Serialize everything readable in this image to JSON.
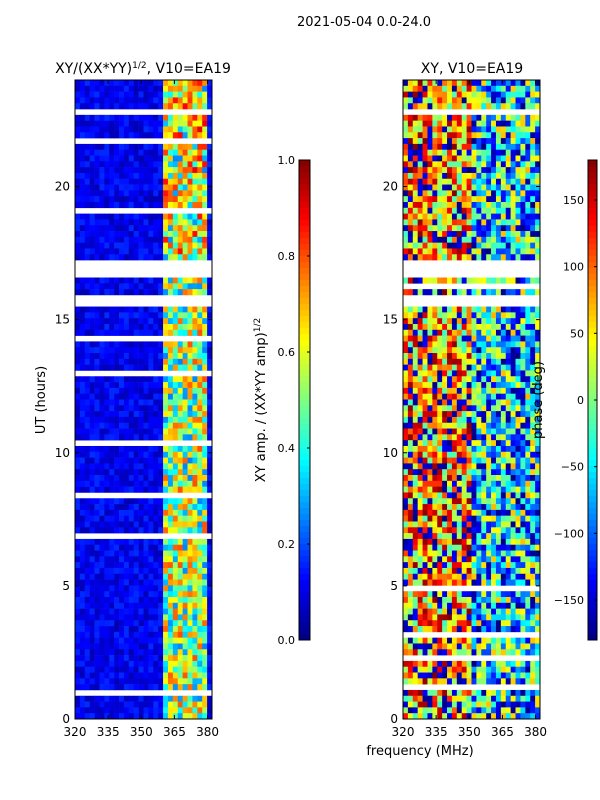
{
  "suptitle": "2021-05-04 0.0-24.0",
  "xlabel": "frequency (MHz)",
  "colors": {
    "background": "#ffffff",
    "axis": "#000000"
  },
  "chart_data": [
    {
      "type": "heatmap",
      "title_main": "XY/(XX*YY)",
      "title_exp": "1/2",
      "title_tail": ", V10=EA19",
      "xlim": [
        320,
        382
      ],
      "xticks": [
        320,
        335,
        350,
        365,
        380
      ],
      "xtick_labels": [
        "320",
        "335",
        "350",
        "365",
        "380"
      ],
      "ylim": [
        0,
        24
      ],
      "yticks": [
        0,
        5,
        10,
        15,
        20
      ],
      "ytick_labels": [
        "0",
        "5",
        "10",
        "15",
        "20"
      ],
      "ylabel": "UT (hours)",
      "colorbar": {
        "label_main": "XY amp. / (XX*YY amp)",
        "label_exp": "1/2",
        "range": [
          0.0,
          1.0
        ],
        "ticks": [
          0.0,
          0.2,
          0.4,
          0.6,
          0.8,
          1.0
        ],
        "tick_labels": [
          "0.0",
          "0.2",
          "0.4",
          "0.6",
          "0.8",
          "1.0"
        ],
        "colormap": "jet"
      },
      "data_description_hours_blank": [
        [
          15.5,
          16.0
        ],
        [
          16.6,
          17.3
        ]
      ],
      "band_high_signal_mhz": [
        359,
        380
      ]
    },
    {
      "type": "heatmap",
      "title_main": "XY, V10=EA19",
      "xlim": [
        320,
        382
      ],
      "xticks": [
        320,
        335,
        350,
        365,
        380
      ],
      "xtick_labels": [
        "320",
        "335",
        "350",
        "365",
        "380"
      ],
      "ylim": [
        0,
        24
      ],
      "yticks": [
        0,
        5,
        10,
        15,
        20
      ],
      "ytick_labels": [
        "0",
        "5",
        "10",
        "15",
        "20"
      ],
      "colorbar": {
        "label": "phase (deg)",
        "range": [
          -180,
          180
        ],
        "ticks": [
          -150,
          -100,
          -50,
          0,
          50,
          100,
          150
        ],
        "tick_labels": [
          "−150",
          "−100",
          "−50",
          "0",
          "50",
          "100",
          "150"
        ],
        "colormap": "jet"
      },
      "data_description_hours_blank": [
        [
          15.5,
          16.0
        ],
        [
          16.6,
          17.3
        ]
      ]
    }
  ]
}
